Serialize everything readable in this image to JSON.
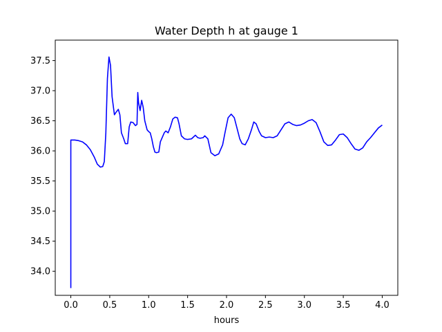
{
  "chart_data": {
    "type": "line",
    "title": "Water Depth h at gauge 1",
    "xlabel": "hours",
    "ylabel": "",
    "xlim": [
      -0.2,
      4.2
    ],
    "ylim": [
      33.6,
      37.84
    ],
    "xticks": [
      0.0,
      0.5,
      1.0,
      1.5,
      2.0,
      2.5,
      3.0,
      3.5,
      4.0
    ],
    "xtick_labels": [
      "0.0",
      "0.5",
      "1.0",
      "1.5",
      "2.0",
      "2.5",
      "3.0",
      "3.5",
      "4.0"
    ],
    "yticks": [
      34.0,
      34.5,
      35.0,
      35.5,
      36.0,
      36.5,
      37.0,
      37.5
    ],
    "ytick_labels": [
      "34.0",
      "34.5",
      "35.0",
      "35.5",
      "36.0",
      "36.5",
      "37.0",
      "37.5"
    ],
    "grid": false,
    "series": [
      {
        "name": "",
        "color": "#0000ff",
        "points": [
          [
            0.0,
            33.72
          ],
          [
            0.0,
            36.18
          ],
          [
            0.05,
            36.18
          ],
          [
            0.1,
            36.17
          ],
          [
            0.15,
            36.15
          ],
          [
            0.2,
            36.1
          ],
          [
            0.25,
            36.02
          ],
          [
            0.3,
            35.9
          ],
          [
            0.34,
            35.78
          ],
          [
            0.38,
            35.73
          ],
          [
            0.41,
            35.74
          ],
          [
            0.43,
            35.82
          ],
          [
            0.45,
            36.3
          ],
          [
            0.47,
            37.2
          ],
          [
            0.49,
            37.56
          ],
          [
            0.51,
            37.42
          ],
          [
            0.53,
            36.9
          ],
          [
            0.56,
            36.6
          ],
          [
            0.58,
            36.64
          ],
          [
            0.61,
            36.69
          ],
          [
            0.63,
            36.6
          ],
          [
            0.65,
            36.3
          ],
          [
            0.68,
            36.2
          ],
          [
            0.7,
            36.12
          ],
          [
            0.73,
            36.12
          ],
          [
            0.75,
            36.4
          ],
          [
            0.77,
            36.48
          ],
          [
            0.8,
            36.47
          ],
          [
            0.83,
            36.42
          ],
          [
            0.85,
            36.44
          ],
          [
            0.86,
            36.97
          ],
          [
            0.87,
            36.8
          ],
          [
            0.89,
            36.67
          ],
          [
            0.91,
            36.84
          ],
          [
            0.93,
            36.72
          ],
          [
            0.95,
            36.5
          ],
          [
            0.98,
            36.35
          ],
          [
            1.0,
            36.32
          ],
          [
            1.02,
            36.3
          ],
          [
            1.04,
            36.2
          ],
          [
            1.06,
            36.07
          ],
          [
            1.08,
            35.98
          ],
          [
            1.1,
            35.97
          ],
          [
            1.13,
            35.98
          ],
          [
            1.15,
            36.15
          ],
          [
            1.2,
            36.3
          ],
          [
            1.22,
            36.33
          ],
          [
            1.25,
            36.3
          ],
          [
            1.28,
            36.4
          ],
          [
            1.31,
            36.53
          ],
          [
            1.34,
            36.56
          ],
          [
            1.37,
            36.55
          ],
          [
            1.39,
            36.45
          ],
          [
            1.42,
            36.25
          ],
          [
            1.46,
            36.2
          ],
          [
            1.5,
            36.19
          ],
          [
            1.55,
            36.2
          ],
          [
            1.6,
            36.26
          ],
          [
            1.63,
            36.22
          ],
          [
            1.66,
            36.21
          ],
          [
            1.7,
            36.22
          ],
          [
            1.72,
            36.25
          ],
          [
            1.76,
            36.2
          ],
          [
            1.8,
            35.97
          ],
          [
            1.85,
            35.92
          ],
          [
            1.9,
            35.95
          ],
          [
            1.95,
            36.1
          ],
          [
            1.98,
            36.3
          ],
          [
            2.02,
            36.55
          ],
          [
            2.06,
            36.61
          ],
          [
            2.1,
            36.55
          ],
          [
            2.13,
            36.4
          ],
          [
            2.17,
            36.2
          ],
          [
            2.2,
            36.12
          ],
          [
            2.24,
            36.1
          ],
          [
            2.28,
            36.2
          ],
          [
            2.32,
            36.35
          ],
          [
            2.35,
            36.48
          ],
          [
            2.38,
            36.45
          ],
          [
            2.42,
            36.32
          ],
          [
            2.45,
            36.25
          ],
          [
            2.5,
            36.22
          ],
          [
            2.55,
            36.23
          ],
          [
            2.6,
            36.22
          ],
          [
            2.65,
            36.25
          ],
          [
            2.7,
            36.35
          ],
          [
            2.75,
            36.45
          ],
          [
            2.8,
            36.48
          ],
          [
            2.85,
            36.44
          ],
          [
            2.9,
            36.42
          ],
          [
            2.95,
            36.43
          ],
          [
            3.0,
            36.46
          ],
          [
            3.05,
            36.5
          ],
          [
            3.1,
            36.52
          ],
          [
            3.15,
            36.47
          ],
          [
            3.2,
            36.32
          ],
          [
            3.25,
            36.15
          ],
          [
            3.3,
            36.09
          ],
          [
            3.35,
            36.1
          ],
          [
            3.4,
            36.18
          ],
          [
            3.45,
            36.27
          ],
          [
            3.5,
            36.28
          ],
          [
            3.55,
            36.22
          ],
          [
            3.6,
            36.12
          ],
          [
            3.65,
            36.03
          ],
          [
            3.7,
            36.01
          ],
          [
            3.75,
            36.05
          ],
          [
            3.8,
            36.15
          ],
          [
            3.85,
            36.22
          ],
          [
            3.9,
            36.3
          ],
          [
            3.95,
            36.38
          ],
          [
            4.0,
            36.43
          ]
        ]
      }
    ]
  }
}
